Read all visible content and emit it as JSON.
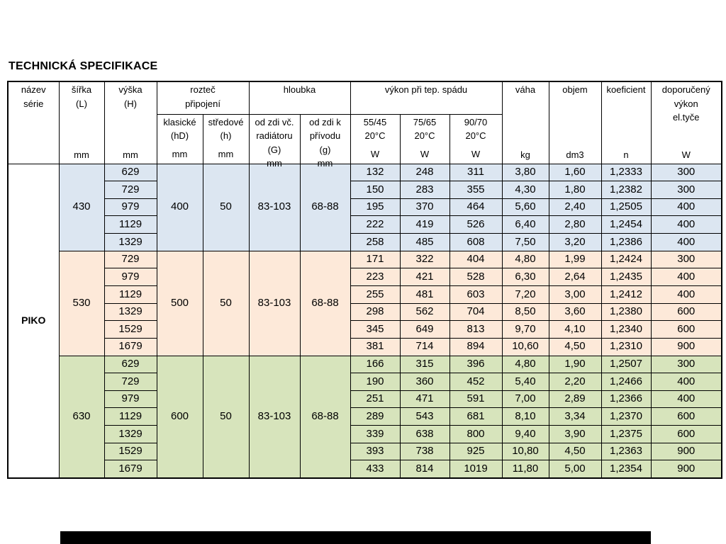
{
  "title": "TECHNICKÁ SPECIFIKACE",
  "table": {
    "series_name": "PIKO",
    "columns": {
      "series": {
        "label": "název\nsérie",
        "unit": ""
      },
      "width": {
        "label": "šířka\n(L)",
        "unit": "mm"
      },
      "height": {
        "label": "výška\n(H)",
        "unit": "mm"
      },
      "pitch_group": {
        "label": "rozteč\npřipojení"
      },
      "pitch_classic": {
        "label": "klasické\n(hD)",
        "unit": "mm"
      },
      "pitch_central": {
        "label": "středové\n(h)",
        "unit": "mm"
      },
      "depth_group": {
        "label": "hloubka"
      },
      "depth_incl": {
        "label": "od zdi vč.\nradiátoru\n(G)",
        "unit": "mm"
      },
      "depth_supply": {
        "label": "od zdi k\npřívodu\n(g)",
        "unit": "mm"
      },
      "power_group": {
        "label": "výkon při tep.  spádu"
      },
      "power_55_45": {
        "label": "55/45\n20°C",
        "unit": "W"
      },
      "power_75_65": {
        "label": "75/65\n20°C",
        "unit": "W"
      },
      "power_90_70": {
        "label": "90/70\n20°C",
        "unit": "W"
      },
      "weight": {
        "label": "váha",
        "unit": "kg"
      },
      "volume": {
        "label": "objem",
        "unit": "dm3"
      },
      "coefficient": {
        "label": "koeficient",
        "unit": "n"
      },
      "recommended": {
        "label": "doporučený\nvýkon\nel.tyče",
        "unit": "W"
      }
    },
    "groups": [
      {
        "width": "430",
        "color": "#dce6f1",
        "pitch_classic": "400",
        "pitch_central": "50",
        "depth_incl": "83-103",
        "depth_supply": "68-88",
        "rows": [
          {
            "height": "629",
            "p55_45": "132",
            "p75_65": "248",
            "p90_70": "311",
            "weight": "3,80",
            "volume": "1,60",
            "coefficient": "1,2333",
            "recommended": "300"
          },
          {
            "height": "729",
            "p55_45": "150",
            "p75_65": "283",
            "p90_70": "355",
            "weight": "4,30",
            "volume": "1,80",
            "coefficient": "1,2382",
            "recommended": "300"
          },
          {
            "height": "979",
            "p55_45": "195",
            "p75_65": "370",
            "p90_70": "464",
            "weight": "5,60",
            "volume": "2,40",
            "coefficient": "1,2505",
            "recommended": "400"
          },
          {
            "height": "1129",
            "p55_45": "222",
            "p75_65": "419",
            "p90_70": "526",
            "weight": "6,40",
            "volume": "2,80",
            "coefficient": "1,2454",
            "recommended": "400"
          },
          {
            "height": "1329",
            "p55_45": "258",
            "p75_65": "485",
            "p90_70": "608",
            "weight": "7,50",
            "volume": "3,20",
            "coefficient": "1,2386",
            "recommended": "400"
          }
        ]
      },
      {
        "width": "530",
        "color": "#fde9d9",
        "pitch_classic": "500",
        "pitch_central": "50",
        "depth_incl": "83-103",
        "depth_supply": "68-88",
        "rows": [
          {
            "height": "729",
            "p55_45": "171",
            "p75_65": "322",
            "p90_70": "404",
            "weight": "4,80",
            "volume": "1,99",
            "coefficient": "1,2424",
            "recommended": "300"
          },
          {
            "height": "979",
            "p55_45": "223",
            "p75_65": "421",
            "p90_70": "528",
            "weight": "6,30",
            "volume": "2,64",
            "coefficient": "1,2435",
            "recommended": "400"
          },
          {
            "height": "1129",
            "p55_45": "255",
            "p75_65": "481",
            "p90_70": "603",
            "weight": "7,20",
            "volume": "3,00",
            "coefficient": "1,2412",
            "recommended": "400"
          },
          {
            "height": "1329",
            "p55_45": "298",
            "p75_65": "562",
            "p90_70": "704",
            "weight": "8,50",
            "volume": "3,60",
            "coefficient": "1,2380",
            "recommended": "600"
          },
          {
            "height": "1529",
            "p55_45": "345",
            "p75_65": "649",
            "p90_70": "813",
            "weight": "9,70",
            "volume": "4,10",
            "coefficient": "1,2340",
            "recommended": "600"
          },
          {
            "height": "1679",
            "p55_45": "381",
            "p75_65": "714",
            "p90_70": "894",
            "weight": "10,60",
            "volume": "4,50",
            "coefficient": "1,2310",
            "recommended": "900"
          }
        ]
      },
      {
        "width": "630",
        "color": "#d7e4bc",
        "pitch_classic": "600",
        "pitch_central": "50",
        "depth_incl": "83-103",
        "depth_supply": "68-88",
        "rows": [
          {
            "height": "629",
            "p55_45": "166",
            "p75_65": "315",
            "p90_70": "396",
            "weight": "4,80",
            "volume": "1,90",
            "coefficient": "1,2507",
            "recommended": "300"
          },
          {
            "height": "729",
            "p55_45": "190",
            "p75_65": "360",
            "p90_70": "452",
            "weight": "5,40",
            "volume": "2,20",
            "coefficient": "1,2466",
            "recommended": "400"
          },
          {
            "height": "979",
            "p55_45": "251",
            "p75_65": "471",
            "p90_70": "591",
            "weight": "7,00",
            "volume": "2,89",
            "coefficient": "1,2366",
            "recommended": "400"
          },
          {
            "height": "1129",
            "p55_45": "289",
            "p75_65": "543",
            "p90_70": "681",
            "weight": "8,10",
            "volume": "3,34",
            "coefficient": "1,2370",
            "recommended": "600"
          },
          {
            "height": "1329",
            "p55_45": "339",
            "p75_65": "638",
            "p90_70": "800",
            "weight": "9,40",
            "volume": "3,90",
            "coefficient": "1,2375",
            "recommended": "600"
          },
          {
            "height": "1529",
            "p55_45": "393",
            "p75_65": "738",
            "p90_70": "925",
            "weight": "10,80",
            "volume": "4,50",
            "coefficient": "1,2363",
            "recommended": "900"
          },
          {
            "height": "1679",
            "p55_45": "433",
            "p75_65": "814",
            "p90_70": "1019",
            "weight": "11,80",
            "volume": "5,00",
            "coefficient": "1,2354",
            "recommended": "900"
          }
        ]
      }
    ]
  }
}
